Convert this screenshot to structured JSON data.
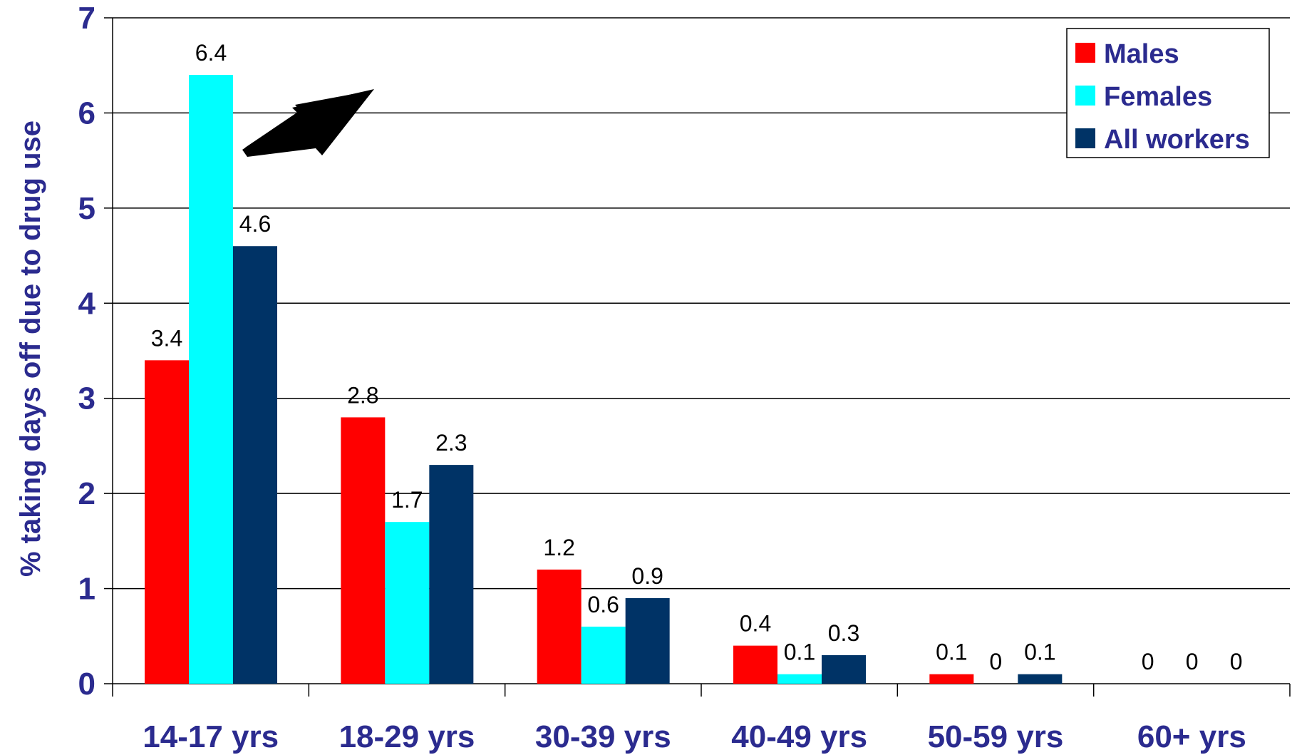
{
  "chart_data": {
    "type": "bar",
    "title": "",
    "xlabel": "",
    "ylabel": "% taking days off due to drug use",
    "ylim": [
      0,
      7
    ],
    "yticks": [
      0,
      1,
      2,
      3,
      4,
      5,
      6,
      7
    ],
    "grid": true,
    "legend_position": "top-right",
    "categories": [
      "14-17 yrs",
      "18-29 yrs",
      "30-39 yrs",
      "40-49 yrs",
      "50-59 yrs",
      "60+ yrs"
    ],
    "series": [
      {
        "name": "Males",
        "color": "#ff0000",
        "values": [
          3.4,
          2.8,
          1.2,
          0.4,
          0.1,
          0
        ]
      },
      {
        "name": "Females",
        "color": "#00ffff",
        "values": [
          6.4,
          1.7,
          0.6,
          0.1,
          0,
          0
        ]
      },
      {
        "name": "All workers",
        "color": "#003366",
        "values": [
          4.6,
          2.3,
          0.9,
          0.3,
          0.1,
          0
        ]
      }
    ],
    "annotations": [
      {
        "type": "arrow",
        "points_to": {
          "category": "14-17 yrs",
          "series": "Females"
        }
      }
    ]
  }
}
